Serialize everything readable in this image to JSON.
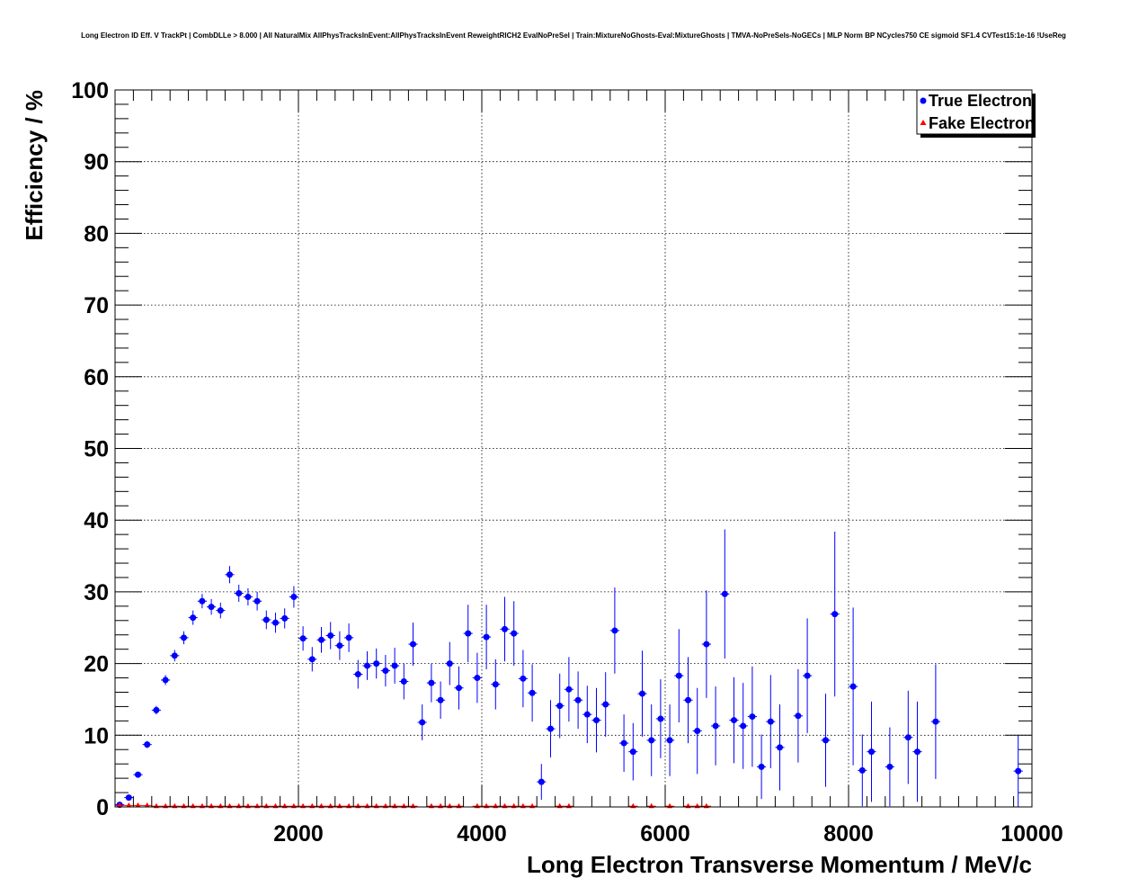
{
  "chart_data": {
    "type": "scatter",
    "title": "Long Electron ID Eff. V TrackPt | CombDLLe > 8.000 | All NaturalMix AllPhysTracksInEvent:AllPhysTracksInEvent ReweightRICH2 EvalNoPreSel | Train:MixtureNoGhosts-Eval:MixtureGhosts | TMVA-NoPreSels-NoGECs | MLP Norm BP NCycles750 CE sigmoid SF1.4 CVTest15:1e-16 !UseReg",
    "xlabel": "Long Electron Transverse Momentum / MeV/c",
    "ylabel": "Efficiency / %",
    "xlim": [
      0,
      10000
    ],
    "ylim": [
      0,
      100
    ],
    "xticks": [
      2000,
      4000,
      6000,
      8000,
      10000
    ],
    "yticks": [
      0,
      10,
      20,
      30,
      40,
      50,
      60,
      70,
      80,
      90,
      100
    ],
    "grid": true,
    "legend_position": "top-right",
    "series": [
      {
        "name": "True Electron",
        "color": "#0000ff",
        "marker": "circle",
        "points": [
          [
            50,
            0.3,
            0.2
          ],
          [
            150,
            1.3,
            0.3
          ],
          [
            250,
            4.5,
            0.4
          ],
          [
            350,
            8.7,
            0.5
          ],
          [
            450,
            13.5,
            0.6
          ],
          [
            550,
            17.7,
            0.7
          ],
          [
            650,
            21.1,
            0.8
          ],
          [
            750,
            23.6,
            0.9
          ],
          [
            850,
            26.4,
            1.0
          ],
          [
            950,
            28.7,
            1.0
          ],
          [
            1050,
            27.9,
            1.1
          ],
          [
            1150,
            27.4,
            1.1
          ],
          [
            1250,
            32.4,
            1.2
          ],
          [
            1350,
            29.8,
            1.2
          ],
          [
            1450,
            29.3,
            1.2
          ],
          [
            1550,
            28.7,
            1.3
          ],
          [
            1650,
            26.1,
            1.3
          ],
          [
            1750,
            25.7,
            1.4
          ],
          [
            1850,
            26.3,
            1.4
          ],
          [
            1950,
            29.3,
            1.5
          ],
          [
            2050,
            23.5,
            1.7
          ],
          [
            2150,
            20.6,
            1.7
          ],
          [
            2250,
            23.3,
            1.8
          ],
          [
            2350,
            23.9,
            1.9
          ],
          [
            2450,
            22.5,
            2.0
          ],
          [
            2550,
            23.6,
            2.0
          ],
          [
            2650,
            18.5,
            2.0
          ],
          [
            2750,
            19.7,
            2.0
          ],
          [
            2850,
            20.0,
            2.1
          ],
          [
            2950,
            19.0,
            2.2
          ],
          [
            3050,
            19.7,
            2.5
          ],
          [
            3150,
            17.5,
            2.5
          ],
          [
            3250,
            22.7,
            3.0
          ],
          [
            3350,
            11.8,
            2.5
          ],
          [
            3450,
            17.3,
            2.7
          ],
          [
            3550,
            14.9,
            2.6
          ],
          [
            3650,
            20.0,
            3.0
          ],
          [
            3750,
            16.6,
            3.0
          ],
          [
            3850,
            24.2,
            4.0
          ],
          [
            3950,
            18.0,
            3.5
          ],
          [
            4050,
            23.7,
            4.5
          ],
          [
            4150,
            17.1,
            3.5
          ],
          [
            4250,
            24.8,
            4.5
          ],
          [
            4350,
            24.2,
            4.5
          ],
          [
            4450,
            17.9,
            4.0
          ],
          [
            4550,
            15.9,
            4.0
          ],
          [
            4650,
            3.5,
            2.5
          ],
          [
            4750,
            10.9,
            4.0
          ],
          [
            4850,
            14.1,
            4.5
          ],
          [
            4950,
            16.4,
            4.5
          ],
          [
            5050,
            14.9,
            4.0
          ],
          [
            5150,
            12.9,
            4.0
          ],
          [
            5250,
            12.1,
            4.5
          ],
          [
            5350,
            14.3,
            4.5
          ],
          [
            5450,
            24.6,
            6.0
          ],
          [
            5550,
            8.9,
            4.0
          ],
          [
            5650,
            7.7,
            4.0
          ],
          [
            5750,
            15.8,
            6.0
          ],
          [
            5850,
            9.3,
            5.0
          ],
          [
            5950,
            12.3,
            5.5
          ],
          [
            6050,
            9.3,
            5.0
          ],
          [
            6150,
            18.3,
            6.5
          ],
          [
            6250,
            14.9,
            6.0
          ],
          [
            6350,
            10.6,
            6.0
          ],
          [
            6450,
            22.7,
            7.5
          ],
          [
            6550,
            11.3,
            5.5
          ],
          [
            6650,
            29.7,
            9.0
          ],
          [
            6750,
            12.1,
            6.0
          ],
          [
            6850,
            11.3,
            6.0
          ],
          [
            6950,
            12.6,
            7.0
          ],
          [
            7050,
            5.6,
            4.5
          ],
          [
            7150,
            11.9,
            6.5
          ],
          [
            7250,
            8.3,
            6.0
          ],
          [
            7450,
            12.7,
            6.5
          ],
          [
            7550,
            18.3,
            8.0
          ],
          [
            7750,
            9.3,
            6.5
          ],
          [
            7850,
            26.9,
            11.5
          ],
          [
            8050,
            16.8,
            11.0
          ],
          [
            8150,
            5.1,
            5.0
          ],
          [
            8250,
            7.7,
            7.0
          ],
          [
            8450,
            5.6,
            5.5
          ],
          [
            8650,
            9.7,
            6.5
          ],
          [
            8750,
            7.7,
            7.0
          ],
          [
            8950,
            11.9,
            8.0
          ],
          [
            9850,
            5.0,
            5.0
          ]
        ]
      },
      {
        "name": "Fake Electron",
        "color": "#ff0000",
        "marker": "triangle",
        "points": [
          [
            50,
            0.2
          ],
          [
            150,
            0.2
          ],
          [
            250,
            0.2
          ],
          [
            350,
            0.2
          ],
          [
            450,
            0.1
          ],
          [
            550,
            0.1
          ],
          [
            650,
            0.1
          ],
          [
            750,
            0.1
          ],
          [
            850,
            0.1
          ],
          [
            950,
            0.1
          ],
          [
            1050,
            0.1
          ],
          [
            1150,
            0.1
          ],
          [
            1250,
            0.1
          ],
          [
            1350,
            0.1
          ],
          [
            1450,
            0.1
          ],
          [
            1550,
            0.1
          ],
          [
            1650,
            0.1
          ],
          [
            1750,
            0.1
          ],
          [
            1850,
            0.1
          ],
          [
            1950,
            0.1
          ],
          [
            2050,
            0.1
          ],
          [
            2150,
            0.1
          ],
          [
            2250,
            0.1
          ],
          [
            2350,
            0.1
          ],
          [
            2450,
            0.1
          ],
          [
            2550,
            0.1
          ],
          [
            2650,
            0.1
          ],
          [
            2750,
            0.1
          ],
          [
            2850,
            0.1
          ],
          [
            2950,
            0.1
          ],
          [
            3050,
            0.1
          ],
          [
            3150,
            0.1
          ],
          [
            3250,
            0.1
          ],
          [
            3450,
            0.1
          ],
          [
            3550,
            0.1
          ],
          [
            3650,
            0.1
          ],
          [
            3750,
            0.1
          ],
          [
            3950,
            0.1
          ],
          [
            4050,
            0.1
          ],
          [
            4150,
            0.1
          ],
          [
            4250,
            0.1
          ],
          [
            4350,
            0.1
          ],
          [
            4450,
            0.1
          ],
          [
            4550,
            0.1
          ],
          [
            4850,
            0.1
          ],
          [
            4950,
            0.1
          ],
          [
            5650,
            0.1
          ],
          [
            5850,
            0.1
          ],
          [
            6050,
            0.1
          ],
          [
            6250,
            0.1
          ],
          [
            6350,
            0.1
          ],
          [
            6450,
            0.1
          ]
        ]
      }
    ]
  }
}
